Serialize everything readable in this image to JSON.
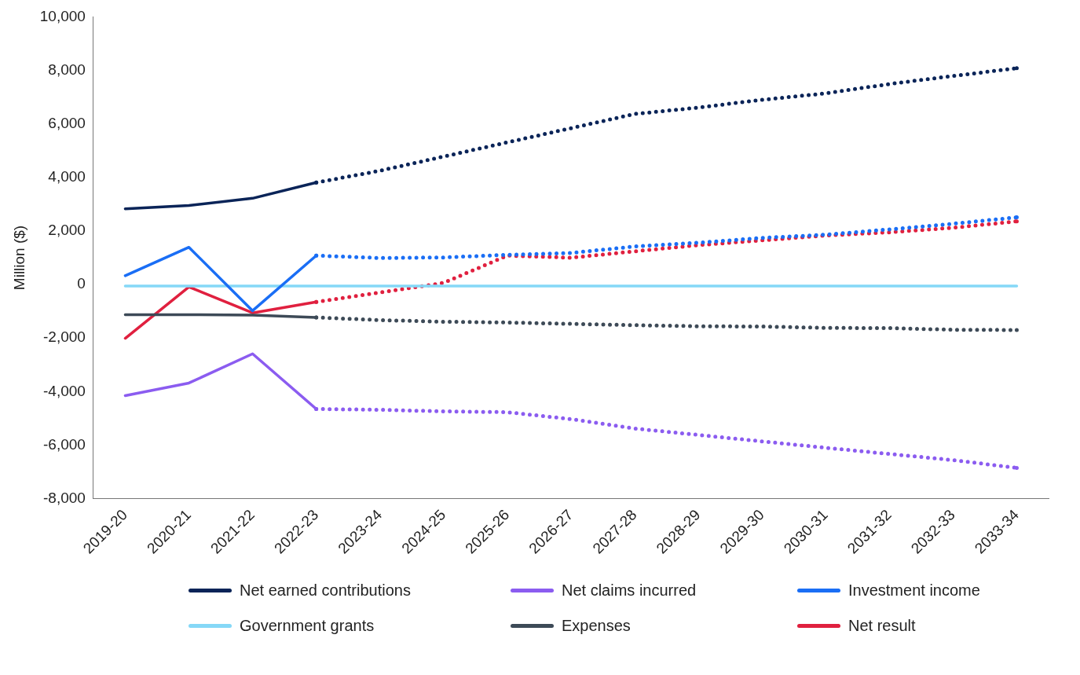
{
  "chart_data": {
    "type": "line",
    "ylabel": "Million ($)",
    "categories": [
      "2019-20",
      "2020-21",
      "2021-22",
      "2022-23",
      "2023-24",
      "2024-25",
      "2025-26",
      "2026-27",
      "2027-28",
      "2028-29",
      "2029-30",
      "2030-31",
      "2031-32",
      "2032-33",
      "2033-34"
    ],
    "ylim": [
      -8000,
      10000
    ],
    "yticks": [
      {
        "value": -8000,
        "label": "-8,000"
      },
      {
        "value": -6000,
        "label": "-6,000"
      },
      {
        "value": -4000,
        "label": "-4,000"
      },
      {
        "value": -2000,
        "label": "-2,000"
      },
      0,
      {
        "value": 2000,
        "label": "2,000"
      },
      {
        "value": 4000,
        "label": "4,000"
      },
      {
        "value": 6000,
        "label": "6,000"
      },
      {
        "value": 8000,
        "label": "8,000"
      },
      {
        "value": 10000,
        "label": "10,000"
      }
    ],
    "grid": false,
    "legend": "bottom",
    "marker": "none",
    "series": [
      {
        "name": "Net earned contributions",
        "color": "#0a2458",
        "line_style": "solid",
        "values": [
          2830,
          2950,
          3220,
          3810,
          null,
          null,
          null,
          null,
          null,
          null,
          null,
          null,
          null,
          null,
          null
        ]
      },
      {
        "color": "#0a2458",
        "line_style": "dotted",
        "values": [
          null,
          null,
          null,
          3810,
          4250,
          4780,
          5310,
          5840,
          6370,
          6610,
          6900,
          7140,
          7490,
          7790,
          8080
        ]
      },
      {
        "name": "Net claims incurred",
        "color": "#8b5cf0",
        "line_style": "solid",
        "values": [
          -4150,
          -3680,
          -2590,
          -4650,
          null,
          null,
          null,
          null,
          null,
          null,
          null,
          null,
          null,
          null,
          null
        ]
      },
      {
        "color": "#8b5cf0",
        "line_style": "dotted",
        "values": [
          null,
          null,
          null,
          -4650,
          -4680,
          -4740,
          -4770,
          -5030,
          -5380,
          -5620,
          -5860,
          -6100,
          -6330,
          -6560,
          -6850
        ]
      },
      {
        "name": "Investment income",
        "color": "#1a6ef5",
        "line_style": "solid",
        "values": [
          330,
          1390,
          -980,
          1080,
          null,
          null,
          null,
          null,
          null,
          null,
          null,
          null,
          null,
          null,
          null
        ]
      },
      {
        "color": "#1a6ef5",
        "line_style": "dotted",
        "values": [
          null,
          null,
          null,
          1080,
          990,
          1010,
          1110,
          1180,
          1420,
          1560,
          1740,
          1860,
          2060,
          2270,
          2510
        ]
      },
      {
        "name": "Government grants",
        "color": "#85d8f7",
        "line_style": "solid",
        "values": [
          -60,
          -60,
          -60,
          -60,
          -60,
          -60,
          -60,
          -60,
          -60,
          -60,
          -60,
          -60,
          -60,
          -60,
          -60
        ]
      },
      {
        "name": "Expenses",
        "color": "#3d4a57",
        "line_style": "solid",
        "values": [
          -1130,
          -1130,
          -1140,
          -1230,
          null,
          null,
          null,
          null,
          null,
          null,
          null,
          null,
          null,
          null,
          null
        ]
      },
      {
        "color": "#3d4a57",
        "line_style": "dotted",
        "values": [
          null,
          null,
          null,
          -1230,
          -1330,
          -1390,
          -1420,
          -1470,
          -1520,
          -1560,
          -1570,
          -1620,
          -1630,
          -1690,
          -1700
        ]
      },
      {
        "name": "Net result",
        "color": "#e0203f",
        "line_style": "solid",
        "values": [
          -2010,
          -90,
          -1060,
          -650,
          null,
          null,
          null,
          null,
          null,
          null,
          null,
          null,
          null,
          null,
          null
        ]
      },
      {
        "color": "#e0203f",
        "line_style": "dotted",
        "values": [
          null,
          null,
          null,
          -650,
          -300,
          60,
          1080,
          1000,
          1240,
          1470,
          1650,
          1830,
          1950,
          2120,
          2360
        ]
      }
    ]
  }
}
